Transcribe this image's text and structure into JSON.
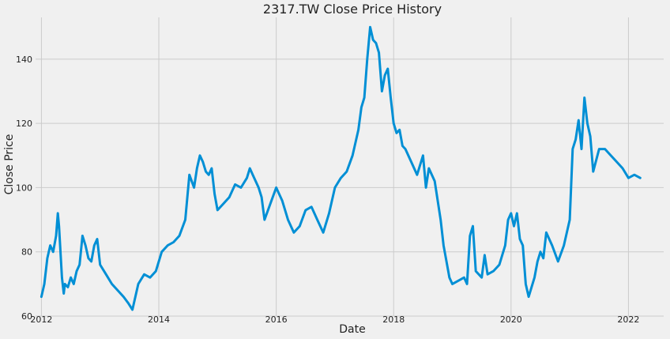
{
  "chart_data": {
    "type": "line",
    "title": "2317.TW Close Price History",
    "xlabel": "Date",
    "ylabel": "Close Price",
    "x_ticks": [
      "2012",
      "2014",
      "2016",
      "2018",
      "2020",
      "2022"
    ],
    "y_ticks": [
      60,
      80,
      100,
      120,
      140
    ],
    "xlim": [
      2011.9,
      2022.6
    ],
    "ylim": [
      60,
      153
    ],
    "grid": true,
    "colors": {
      "line": "#008fd5",
      "grid": "#cbcbcb",
      "background": "#f0f0f0"
    },
    "series": [
      {
        "x": [
          2012.0,
          2012.05,
          2012.1,
          2012.15,
          2012.2,
          2012.25,
          2012.28,
          2012.3,
          2012.35,
          2012.38,
          2012.4,
          2012.45,
          2012.5,
          2012.55,
          2012.6,
          2012.65,
          2012.7,
          2012.75,
          2012.8,
          2012.85,
          2012.9,
          2012.95,
          2013.0,
          2013.1,
          2013.2,
          2013.3,
          2013.4,
          2013.48,
          2013.55,
          2013.65,
          2013.75,
          2013.85,
          2013.95,
          2014.05,
          2014.15,
          2014.25,
          2014.35,
          2014.45,
          2014.52,
          2014.6,
          2014.65,
          2014.7,
          2014.75,
          2014.8,
          2014.85,
          2014.9,
          2014.95,
          2015.0,
          2015.1,
          2015.2,
          2015.3,
          2015.4,
          2015.5,
          2015.55,
          2015.6,
          2015.7,
          2015.75,
          2015.8,
          2015.9,
          2016.0,
          2016.05,
          2016.1,
          2016.2,
          2016.3,
          2016.4,
          2016.5,
          2016.6,
          2016.7,
          2016.8,
          2016.9,
          2017.0,
          2017.1,
          2017.2,
          2017.3,
          2017.4,
          2017.45,
          2017.5,
          2017.55,
          2017.6,
          2017.65,
          2017.7,
          2017.75,
          2017.8,
          2017.85,
          2017.9,
          2017.95,
          2018.0,
          2018.05,
          2018.1,
          2018.15,
          2018.2,
          2018.3,
          2018.4,
          2018.5,
          2018.55,
          2018.6,
          2018.7,
          2018.8,
          2018.85,
          2018.9,
          2018.95,
          2019.0,
          2019.1,
          2019.2,
          2019.25,
          2019.3,
          2019.35,
          2019.4,
          2019.5,
          2019.55,
          2019.6,
          2019.7,
          2019.8,
          2019.9,
          2019.95,
          2020.0,
          2020.05,
          2020.1,
          2020.15,
          2020.2,
          2020.25,
          2020.3,
          2020.4,
          2020.45,
          2020.5,
          2020.55,
          2020.6,
          2020.7,
          2020.8,
          2020.9,
          2021.0,
          2021.05,
          2021.1,
          2021.15,
          2021.2,
          2021.25,
          2021.3,
          2021.35,
          2021.4,
          2021.5,
          2021.6,
          2021.7,
          2021.8,
          2021.9,
          2022.0,
          2022.1,
          2022.2
        ],
        "y": [
          66,
          70,
          78,
          82,
          80,
          85,
          92,
          88,
          72,
          67,
          70,
          69,
          72,
          70,
          74,
          76,
          85,
          82,
          78,
          77,
          82,
          84,
          76,
          73,
          70,
          68,
          66,
          64,
          62,
          70,
          73,
          72,
          74,
          80,
          82,
          83,
          85,
          90,
          104,
          100,
          106,
          110,
          108,
          105,
          104,
          106,
          98,
          93,
          95,
          97,
          101,
          100,
          103,
          106,
          104,
          100,
          97,
          90,
          95,
          100,
          98,
          96,
          90,
          86,
          88,
          93,
          94,
          90,
          86,
          92,
          100,
          103,
          105,
          110,
          118,
          125,
          128,
          140,
          150,
          146,
          145,
          142,
          130,
          135,
          137,
          128,
          120,
          117,
          118,
          113,
          112,
          108,
          104,
          110,
          100,
          106,
          102,
          90,
          82,
          77,
          72,
          70,
          71,
          72,
          70,
          85,
          88,
          74,
          72,
          79,
          73,
          74,
          76,
          82,
          90,
          92,
          88,
          92,
          84,
          82,
          70,
          66,
          72,
          77,
          80,
          78,
          86,
          82,
          77,
          82,
          90,
          112,
          115,
          121,
          112,
          128,
          120,
          116,
          105,
          112,
          112,
          110,
          108,
          106,
          103,
          104,
          103
        ]
      }
    ]
  }
}
